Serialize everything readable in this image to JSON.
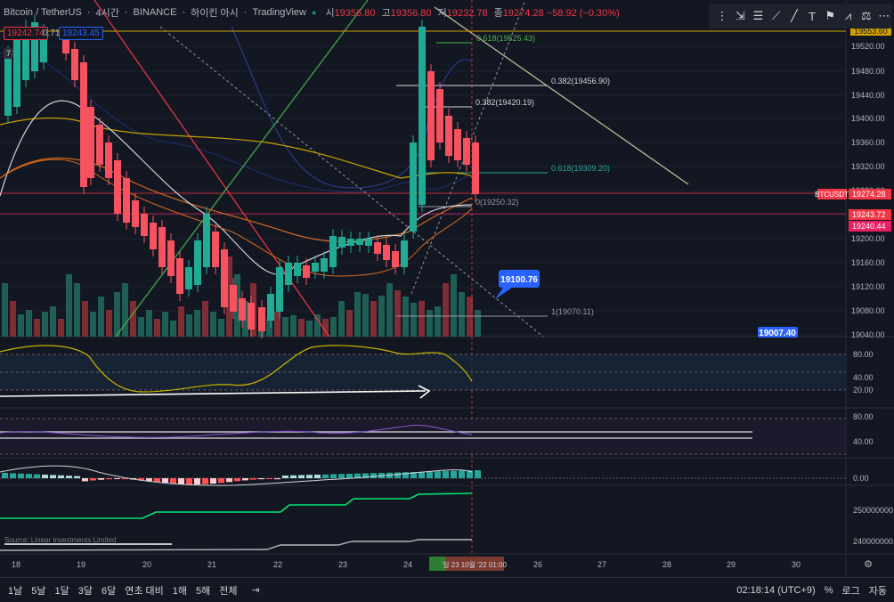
{
  "header": {
    "symbol": "Bitcoin / TetherUS",
    "interval": "4시간",
    "exchange": "BINANCE",
    "session": "하이킨 아시",
    "source": "TradingView",
    "ohlc": [
      {
        "k": "시",
        "v": "19356.80"
      },
      {
        "k": "고",
        "v": "19356.80"
      },
      {
        "k": "저",
        "v": "19232.78"
      },
      {
        "k": "종",
        "v": "19274.28 −58.92 (−0.30%)"
      }
    ],
    "bid": "19242.74",
    "spread": "0.71",
    "ask": "19243.45",
    "indicator_count": "7"
  },
  "toolbar": {
    "icons": [
      "trendline-icon",
      "fib-icon",
      "brush-icon",
      "line-icon",
      "text-icon",
      "flag-icon",
      "pattern-icon",
      "measure-icon",
      "more-icon"
    ]
  },
  "price_axis": {
    "ticks": [
      "19560.00",
      "19520.00",
      "19480.00",
      "19440.00",
      "19400.00",
      "19360.00",
      "19320.00",
      "19280.00",
      "19240.00",
      "19200.00",
      "19160.00",
      "19120.00",
      "19080.00",
      "19040.00"
    ],
    "top_partial": "19553.60",
    "labels": [
      {
        "text": "BTCUSDT",
        "color": "#f23645"
      },
      {
        "text": "19274.28",
        "color": "#f23645"
      },
      {
        "text": "19243.72",
        "color": "#f23645"
      },
      {
        "text": "19240.44",
        "color": "#e91e63"
      }
    ]
  },
  "fib_labels": [
    "0.618(19525.43)",
    "0.382(19456.90)",
    "0.382(19420.19)",
    "0.618(19309.20)",
    "0(19250.32)",
    "1(19070.11)"
  ],
  "callouts": {
    "blue_callout": "19100.76",
    "blue_flag": "19007.40"
  },
  "oscillator_1": {
    "ticks": [
      "80.00",
      "40.00",
      "20.00"
    ]
  },
  "oscillator_2": {
    "ticks": [
      "80.00",
      "40.00"
    ]
  },
  "oscillator_3": {
    "ticks": [
      "0.00"
    ]
  },
  "oscillator_4": {
    "ticks": [
      "250000000.00",
      "240000000.00"
    ]
  },
  "date_axis": {
    "ticks": [
      "18",
      "19",
      "20",
      "21",
      "22",
      "23",
      "24",
      "26",
      "27",
      "28",
      "29",
      "30"
    ],
    "cursor_label": "일 23 10월 '22 01:00",
    "cursor_label_partial": "월 2022-10-25 01:00"
  },
  "watermark_text": "Source: Linear Investments Limited",
  "bottombar": {
    "timeframes": [
      "1날",
      "5날",
      "1달",
      "3달",
      "6달",
      "연초 대비",
      "1해",
      "5해",
      "전체"
    ],
    "clock": "02:18:14 (UTC+9)",
    "percent": "%",
    "log": "로그",
    "auto": "자동"
  },
  "colors": {
    "bg": "#131722",
    "up": "#089981",
    "down": "#f23645",
    "grid": "#1e222d"
  },
  "candle_series": {
    "up": "#22ab94",
    "down": "#f7525f"
  }
}
